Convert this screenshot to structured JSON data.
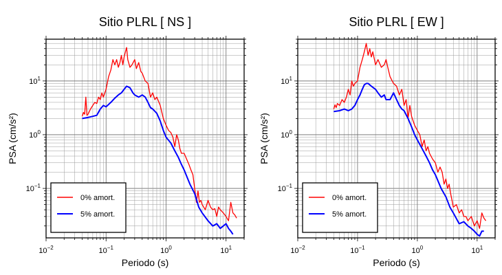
{
  "chart_data": [
    {
      "type": "line",
      "title": "Sitio PLRL [ NS ]",
      "xlabel": "Periodo (s)",
      "ylabel": "PSA (cm/s²)",
      "x_scale": "log",
      "y_scale": "log",
      "xlim": [
        0.01,
        20
      ],
      "ylim": [
        0.012,
        60
      ],
      "x_ticks": [
        {
          "value": 0.01,
          "base": "10",
          "exp": "−2"
        },
        {
          "value": 0.1,
          "base": "10",
          "exp": "−1"
        },
        {
          "value": 1,
          "base": "10",
          "exp": "0"
        },
        {
          "value": 10,
          "base": "10",
          "exp": "1"
        }
      ],
      "y_ticks": [
        {
          "value": 0.1,
          "base": "10",
          "exp": "−1"
        },
        {
          "value": 1,
          "base": "10",
          "exp": "0"
        },
        {
          "value": 10,
          "base": "10",
          "exp": "1"
        }
      ],
      "grid": true,
      "legend_position": "bottom-left",
      "series": [
        {
          "name": "0% amort.",
          "color": "#ff0000",
          "points": [
            [
              0.04,
              2.2
            ],
            [
              0.042,
              2.6
            ],
            [
              0.044,
              2.4
            ],
            [
              0.046,
              5.0
            ],
            [
              0.048,
              2.3
            ],
            [
              0.05,
              2.4
            ],
            [
              0.055,
              3.0
            ],
            [
              0.06,
              3.5
            ],
            [
              0.065,
              4.0
            ],
            [
              0.07,
              3.8
            ],
            [
              0.075,
              5.0
            ],
            [
              0.08,
              4.5
            ],
            [
              0.085,
              6.0
            ],
            [
              0.09,
              5.0
            ],
            [
              0.1,
              7.0
            ],
            [
              0.11,
              12.0
            ],
            [
              0.12,
              16.0
            ],
            [
              0.13,
              25.0
            ],
            [
              0.14,
              20.0
            ],
            [
              0.15,
              25.0
            ],
            [
              0.16,
              18.0
            ],
            [
              0.17,
              22.0
            ],
            [
              0.18,
              30.0
            ],
            [
              0.19,
              20.0
            ],
            [
              0.2,
              28.0
            ],
            [
              0.21,
              35.0
            ],
            [
              0.22,
              42.0
            ],
            [
              0.23,
              25.0
            ],
            [
              0.25,
              18.0
            ],
            [
              0.27,
              20.0
            ],
            [
              0.3,
              25.0
            ],
            [
              0.32,
              17.0
            ],
            [
              0.35,
              22.0
            ],
            [
              0.38,
              15.0
            ],
            [
              0.4,
              14.0
            ],
            [
              0.45,
              10.0
            ],
            [
              0.5,
              9.0
            ],
            [
              0.55,
              5.0
            ],
            [
              0.6,
              6.0
            ],
            [
              0.65,
              4.5
            ],
            [
              0.7,
              5.0
            ],
            [
              0.8,
              3.5
            ],
            [
              0.9,
              2.0
            ],
            [
              1.0,
              1.5
            ],
            [
              1.1,
              1.2
            ],
            [
              1.2,
              1.1
            ],
            [
              1.3,
              0.9
            ],
            [
              1.4,
              0.6
            ],
            [
              1.5,
              1.0
            ],
            [
              1.6,
              0.8
            ],
            [
              1.7,
              0.55
            ],
            [
              1.8,
              0.45
            ],
            [
              2.0,
              0.45
            ],
            [
              2.2,
              0.35
            ],
            [
              2.4,
              0.28
            ],
            [
              2.6,
              0.22
            ],
            [
              2.8,
              0.18
            ],
            [
              3.0,
              0.1
            ],
            [
              3.2,
              0.055
            ],
            [
              3.4,
              0.09
            ],
            [
              3.6,
              0.055
            ],
            [
              3.8,
              0.06
            ],
            [
              4.0,
              0.05
            ],
            [
              4.5,
              0.04
            ],
            [
              5.0,
              0.06
            ],
            [
              5.5,
              0.045
            ],
            [
              6.0,
              0.04
            ],
            [
              6.5,
              0.042
            ],
            [
              7.0,
              0.03
            ],
            [
              7.5,
              0.045
            ],
            [
              8.0,
              0.04
            ],
            [
              9.0,
              0.035
            ],
            [
              10.0,
              0.03
            ],
            [
              11.0,
              0.025
            ],
            [
              12.0,
              0.055
            ],
            [
              13.0,
              0.035
            ],
            [
              14.0,
              0.032
            ],
            [
              15.0,
              0.028
            ]
          ]
        },
        {
          "name": "5% amort.",
          "color": "#0000ff",
          "points": [
            [
              0.04,
              2.0
            ],
            [
              0.05,
              2.1
            ],
            [
              0.06,
              2.2
            ],
            [
              0.07,
              2.3
            ],
            [
              0.08,
              3.0
            ],
            [
              0.09,
              3.5
            ],
            [
              0.1,
              3.3
            ],
            [
              0.12,
              4.0
            ],
            [
              0.14,
              4.8
            ],
            [
              0.16,
              5.5
            ],
            [
              0.18,
              6.0
            ],
            [
              0.2,
              7.0
            ],
            [
              0.22,
              8.0
            ],
            [
              0.25,
              7.5
            ],
            [
              0.28,
              6.0
            ],
            [
              0.3,
              5.5
            ],
            [
              0.35,
              5.0
            ],
            [
              0.4,
              5.5
            ],
            [
              0.45,
              5.0
            ],
            [
              0.5,
              4.0
            ],
            [
              0.55,
              3.2
            ],
            [
              0.6,
              3.0
            ],
            [
              0.7,
              2.5
            ],
            [
              0.8,
              1.8
            ],
            [
              0.9,
              1.2
            ],
            [
              1.0,
              0.9
            ],
            [
              1.2,
              0.7
            ],
            [
              1.4,
              0.5
            ],
            [
              1.6,
              0.38
            ],
            [
              1.8,
              0.28
            ],
            [
              2.0,
              0.22
            ],
            [
              2.5,
              0.12
            ],
            [
              3.0,
              0.08
            ],
            [
              3.5,
              0.045
            ],
            [
              4.0,
              0.035
            ],
            [
              5.0,
              0.025
            ],
            [
              6.0,
              0.02
            ],
            [
              7.0,
              0.022
            ],
            [
              8.0,
              0.018
            ],
            [
              9.0,
              0.02
            ],
            [
              10.0,
              0.022
            ],
            [
              11.0,
              0.018
            ],
            [
              12.0,
              0.016
            ],
            [
              13.0,
              0.014
            ]
          ]
        }
      ]
    },
    {
      "type": "line",
      "title": "Sitio PLRL [ EW ]",
      "xlabel": "Periodo (s)",
      "ylabel": "PSA (cm/s²)",
      "x_scale": "log",
      "y_scale": "log",
      "xlim": [
        0.01,
        20
      ],
      "ylim": [
        0.012,
        60
      ],
      "x_ticks": [
        {
          "value": 0.01,
          "base": "10",
          "exp": "−2"
        },
        {
          "value": 0.1,
          "base": "10",
          "exp": "−1"
        },
        {
          "value": 1,
          "base": "10",
          "exp": "0"
        },
        {
          "value": 10,
          "base": "10",
          "exp": "1"
        }
      ],
      "y_ticks": [
        {
          "value": 0.1,
          "base": "10",
          "exp": "−1"
        },
        {
          "value": 1,
          "base": "10",
          "exp": "0"
        },
        {
          "value": 10,
          "base": "10",
          "exp": "1"
        }
      ],
      "grid": true,
      "legend_position": "bottom-left",
      "series": [
        {
          "name": "0% amort.",
          "color": "#ff0000",
          "points": [
            [
              0.04,
              3.0
            ],
            [
              0.042,
              3.6
            ],
            [
              0.044,
              3.2
            ],
            [
              0.046,
              3.8
            ],
            [
              0.05,
              3.5
            ],
            [
              0.055,
              4.5
            ],
            [
              0.06,
              4.0
            ],
            [
              0.065,
              5.0
            ],
            [
              0.07,
              7.0
            ],
            [
              0.075,
              5.5
            ],
            [
              0.08,
              10.0
            ],
            [
              0.085,
              8.0
            ],
            [
              0.09,
              9.0
            ],
            [
              0.1,
              10.0
            ],
            [
              0.11,
              18.0
            ],
            [
              0.12,
              25.0
            ],
            [
              0.13,
              35.0
            ],
            [
              0.14,
              50.0
            ],
            [
              0.15,
              30.0
            ],
            [
              0.16,
              40.0
            ],
            [
              0.17,
              28.0
            ],
            [
              0.18,
              35.0
            ],
            [
              0.2,
              20.0
            ],
            [
              0.22,
              25.0
            ],
            [
              0.25,
              18.0
            ],
            [
              0.28,
              20.0
            ],
            [
              0.3,
              25.0
            ],
            [
              0.32,
              18.0
            ],
            [
              0.35,
              12.0
            ],
            [
              0.38,
              10.0
            ],
            [
              0.4,
              9.0
            ],
            [
              0.45,
              8.0
            ],
            [
              0.5,
              5.5
            ],
            [
              0.55,
              7.0
            ],
            [
              0.6,
              3.5
            ],
            [
              0.65,
              4.5
            ],
            [
              0.7,
              2.0
            ],
            [
              0.75,
              3.5
            ],
            [
              0.8,
              2.2
            ],
            [
              0.9,
              1.5
            ],
            [
              1.0,
              1.2
            ],
            [
              1.1,
              1.0
            ],
            [
              1.2,
              0.6
            ],
            [
              1.3,
              0.8
            ],
            [
              1.4,
              0.5
            ],
            [
              1.5,
              0.6
            ],
            [
              1.6,
              0.45
            ],
            [
              1.8,
              0.35
            ],
            [
              2.0,
              0.3
            ],
            [
              2.2,
              0.2
            ],
            [
              2.4,
              0.25
            ],
            [
              2.6,
              0.2
            ],
            [
              2.8,
              0.12
            ],
            [
              3.0,
              0.15
            ],
            [
              3.2,
              0.1
            ],
            [
              3.4,
              0.12
            ],
            [
              3.6,
              0.08
            ],
            [
              3.8,
              0.06
            ],
            [
              4.0,
              0.045
            ],
            [
              4.5,
              0.05
            ],
            [
              5.0,
              0.035
            ],
            [
              5.5,
              0.04
            ],
            [
              6.0,
              0.03
            ],
            [
              6.5,
              0.03
            ],
            [
              7.0,
              0.025
            ],
            [
              8.0,
              0.03
            ],
            [
              9.0,
              0.02
            ],
            [
              10.0,
              0.025
            ],
            [
              11.0,
              0.018
            ],
            [
              12.0,
              0.035
            ],
            [
              13.0,
              0.028
            ],
            [
              14.0,
              0.025
            ]
          ]
        },
        {
          "name": "5% amort.",
          "color": "#0000ff",
          "points": [
            [
              0.04,
              2.7
            ],
            [
              0.05,
              2.8
            ],
            [
              0.06,
              3.0
            ],
            [
              0.07,
              2.8
            ],
            [
              0.08,
              3.0
            ],
            [
              0.09,
              3.5
            ],
            [
              0.1,
              4.5
            ],
            [
              0.11,
              5.5
            ],
            [
              0.12,
              7.0
            ],
            [
              0.13,
              8.5
            ],
            [
              0.14,
              9.0
            ],
            [
              0.15,
              9.0
            ],
            [
              0.17,
              8.0
            ],
            [
              0.2,
              7.0
            ],
            [
              0.22,
              6.0
            ],
            [
              0.25,
              5.0
            ],
            [
              0.28,
              5.5
            ],
            [
              0.3,
              4.5
            ],
            [
              0.35,
              4.5
            ],
            [
              0.4,
              6.0
            ],
            [
              0.45,
              4.5
            ],
            [
              0.5,
              3.5
            ],
            [
              0.55,
              3.0
            ],
            [
              0.6,
              2.8
            ],
            [
              0.7,
              2.0
            ],
            [
              0.8,
              1.4
            ],
            [
              0.9,
              1.0
            ],
            [
              1.0,
              0.8
            ],
            [
              1.2,
              0.55
            ],
            [
              1.4,
              0.4
            ],
            [
              1.6,
              0.3
            ],
            [
              1.8,
              0.22
            ],
            [
              2.0,
              0.18
            ],
            [
              2.5,
              0.1
            ],
            [
              3.0,
              0.07
            ],
            [
              3.5,
              0.045
            ],
            [
              4.0,
              0.035
            ],
            [
              5.0,
              0.022
            ],
            [
              6.0,
              0.024
            ],
            [
              7.0,
              0.02
            ],
            [
              8.0,
              0.018
            ],
            [
              9.0,
              0.016
            ],
            [
              10.0,
              0.014
            ],
            [
              11.0,
              0.013
            ],
            [
              12.0,
              0.016
            ],
            [
              13.0,
              0.016
            ]
          ]
        }
      ]
    }
  ]
}
